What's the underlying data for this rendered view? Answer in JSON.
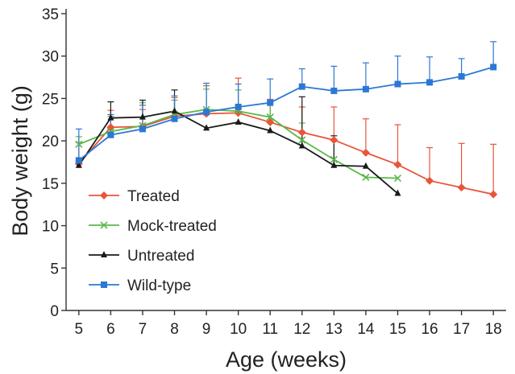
{
  "chart_data": {
    "type": "line",
    "xlabel": "Age (weeks)",
    "ylabel": "Body weight (g)",
    "xlim": [
      4.6,
      18.4
    ],
    "ylim": [
      0,
      35
    ],
    "x_ticks": [
      5,
      6,
      7,
      8,
      9,
      10,
      11,
      12,
      13,
      14,
      15,
      16,
      17,
      18
    ],
    "y_ticks": [
      0,
      5,
      10,
      15,
      20,
      25,
      30,
      35
    ],
    "legend_position": "lower-left",
    "series": [
      {
        "name": "Treated",
        "color": "#e8553a",
        "marker": "diamond",
        "x": [
          5,
          6,
          7,
          8,
          9,
          10,
          11,
          12,
          13,
          14,
          15,
          16,
          17,
          18
        ],
        "y": [
          17.3,
          21.6,
          21.7,
          22.9,
          23.2,
          23.3,
          22.2,
          21.0,
          20.1,
          18.6,
          17.2,
          15.3,
          14.5,
          13.7
        ],
        "err": [
          2.5,
          2.0,
          2.0,
          2.2,
          3.3,
          4.1,
          2.7,
          3.0,
          3.9,
          4.0,
          4.7,
          3.9,
          5.2,
          5.9
        ]
      },
      {
        "name": "Mock-treated",
        "color": "#5ab84a",
        "marker": "x",
        "x": [
          5,
          6,
          7,
          8,
          9,
          10,
          11,
          12,
          13,
          14,
          15
        ],
        "y": [
          19.6,
          21.1,
          21.8,
          23.1,
          23.7,
          23.5,
          22.8,
          20.1,
          17.8,
          15.7,
          15.6
        ],
        "err": [
          0.9,
          1.8,
          2.7,
          1.7,
          2.4,
          2.5,
          2.0,
          2.0,
          2.4,
          0,
          0
        ]
      },
      {
        "name": "Untreated",
        "color": "#1a1a1a",
        "marker": "triangle",
        "x": [
          5,
          6,
          7,
          8,
          9,
          10,
          11,
          12,
          13,
          14,
          15
        ],
        "y": [
          17.1,
          22.7,
          22.8,
          23.5,
          21.5,
          22.2,
          21.2,
          19.4,
          17.1,
          17.0,
          13.8
        ],
        "err": [
          0.5,
          1.9,
          2.0,
          2.5,
          0.0,
          0.0,
          0.0,
          5.8,
          3.5,
          0.0,
          0.0
        ]
      },
      {
        "name": "Wild-type",
        "color": "#2b78d4",
        "marker": "square",
        "x": [
          5,
          6,
          7,
          8,
          9,
          10,
          11,
          12,
          13,
          14,
          15,
          16,
          17,
          18
        ],
        "y": [
          17.7,
          20.7,
          21.4,
          22.6,
          23.4,
          24.0,
          24.5,
          26.4,
          25.9,
          26.1,
          26.7,
          26.9,
          27.6,
          28.7
        ],
        "err": [
          3.7,
          2.4,
          2.8,
          2.7,
          3.4,
          2.7,
          2.8,
          2.1,
          2.9,
          3.1,
          3.3,
          3.0,
          2.1,
          3.0
        ]
      }
    ]
  }
}
